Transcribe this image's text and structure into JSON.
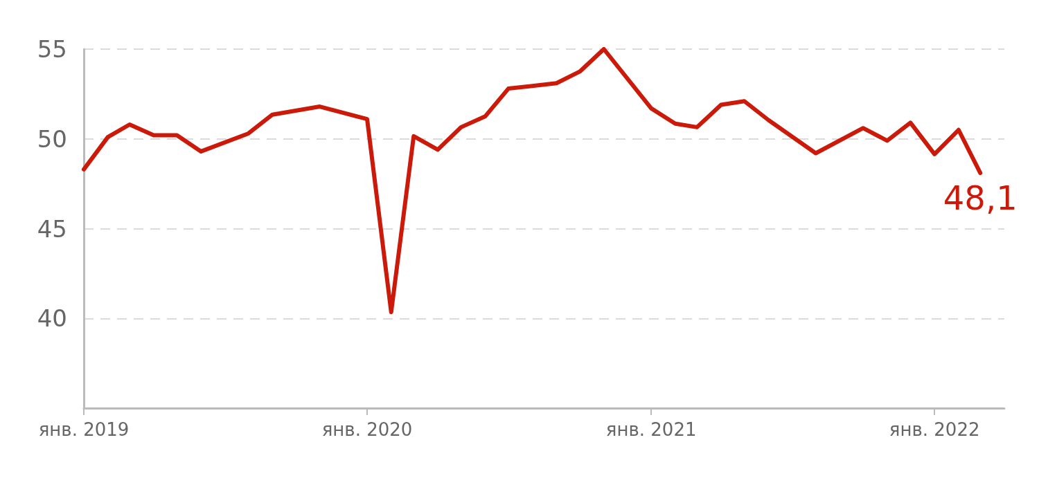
{
  "chart_data": {
    "type": "line",
    "x": [
      "2019-01",
      "2019-02",
      "2019-03",
      "2019-04",
      "2019-05",
      "2019-06",
      "2019-08",
      "2019-09",
      "2019-11",
      "2020-01",
      "2020-02",
      "2020-03",
      "2020-04",
      "2020-05",
      "2020-06",
      "2020-07",
      "2020-09",
      "2020-10",
      "2020-11",
      "2021-01",
      "2021-02",
      "2021-03",
      "2021-04",
      "2021-05",
      "2021-06",
      "2021-08",
      "2021-10",
      "2021-11",
      "2021-12",
      "2022-01",
      "2022-02",
      "2022-03"
    ],
    "series": [
      {
        "color": "#cc1a0a",
        "values": [
          48.3,
          50.1,
          50.8,
          50.2,
          50.2,
          49.3,
          50.3,
          51.35,
          51.8,
          51.1,
          40.35,
          50.15,
          49.4,
          50.65,
          51.25,
          52.8,
          53.1,
          53.75,
          55.0,
          51.7,
          50.85,
          50.65,
          51.9,
          52.1,
          51.05,
          49.2,
          50.6,
          49.9,
          50.9,
          49.15,
          50.5,
          48.1
        ],
        "value_labels": [
          null,
          null,
          null,
          null,
          null,
          null,
          null,
          null,
          null,
          null,
          null,
          null,
          null,
          null,
          null,
          null,
          null,
          null,
          null,
          null,
          null,
          null,
          null,
          null,
          null,
          null,
          null,
          null,
          null,
          null,
          null,
          "48,1"
        ]
      }
    ],
    "xlim": [
      "2019-01",
      "2022-04"
    ],
    "xticks": [
      {
        "value": "2019-01",
        "label": "янв. 2019"
      },
      {
        "value": "2020-01",
        "label": "янв. 2020"
      },
      {
        "value": "2021-01",
        "label": "янв. 2021"
      },
      {
        "value": "2022-01",
        "label": "янв. 2022"
      }
    ],
    "ylim": [
      35,
      55
    ],
    "yticks": [
      40,
      45,
      50,
      55
    ],
    "grid": "y",
    "marker": "none",
    "line_style": "solid"
  }
}
